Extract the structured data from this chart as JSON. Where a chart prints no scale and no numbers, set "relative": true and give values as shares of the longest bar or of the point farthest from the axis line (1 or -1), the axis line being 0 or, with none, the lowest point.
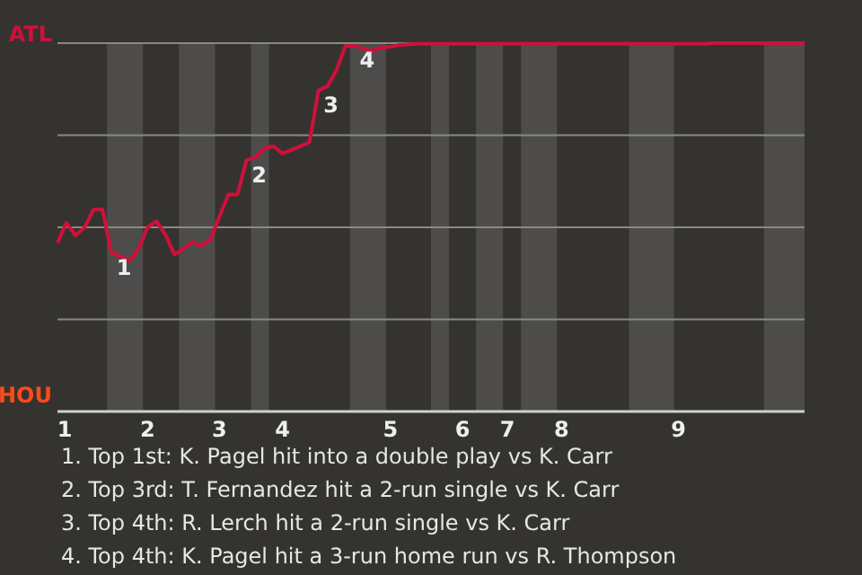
{
  "chart_data": {
    "type": "line",
    "relative": true,
    "categories": [
      "1",
      null,
      null,
      null,
      null,
      null,
      null,
      null,
      null,
      null,
      "2",
      null,
      null,
      null,
      null,
      null,
      null,
      null,
      "3",
      null,
      null,
      null,
      null,
      null,
      null,
      "4",
      null,
      null,
      null,
      null,
      null,
      null,
      null,
      null,
      null,
      null,
      null,
      "5",
      null,
      null,
      null,
      null,
      null,
      null,
      null,
      "6",
      null,
      null,
      null,
      null,
      "7",
      null,
      null,
      null,
      null,
      null,
      "8",
      null,
      null,
      null,
      null,
      null,
      null,
      null,
      null,
      null,
      null,
      null,
      null,
      "9",
      null,
      null,
      null,
      null,
      null,
      null,
      null,
      null,
      null,
      null,
      null,
      null,
      null,
      null
    ],
    "series": [
      {
        "color": "#d0103a",
        "values": [
          0.458,
          0.512,
          0.478,
          0.499,
          0.548,
          0.548,
          0.431,
          0.421,
          0.409,
          0.44,
          0.5,
          0.516,
          0.48,
          0.426,
          0.442,
          0.46,
          0.45,
          0.467,
          0.53,
          0.589,
          0.589,
          0.682,
          0.69,
          0.715,
          0.72,
          0.7,
          0.71,
          0.72,
          0.731,
          0.871,
          0.883,
          0.927,
          0.992,
          0.993,
          0.985,
          0.978,
          0.988,
          0.99,
          0.995,
          0.997,
          0.998,
          0.998,
          0.998,
          0.998,
          0.998,
          0.998,
          0.998,
          0.998,
          0.998,
          0.998,
          0.998,
          0.998,
          0.998,
          0.998,
          0.998,
          0.998,
          0.998,
          0.998,
          0.998,
          0.998,
          0.998,
          0.998,
          0.998,
          0.998,
          0.998,
          0.998,
          0.998,
          0.998,
          0.998,
          0.998,
          0.998,
          0.998,
          0.998,
          1,
          1,
          1,
          1,
          1,
          1,
          1,
          1,
          1,
          1,
          1
        ]
      }
    ],
    "grid": "y",
    "annotations": [
      "ATL",
      "HOU",
      {
        "text": "1",
        "y": 0.431
      },
      {
        "text": "2",
        "y": 0.682
      },
      {
        "text": "3",
        "y": 0.871
      },
      {
        "text": "4",
        "y": 0.993
      },
      "1. Top 1st: K. Pagel hit into a double play vs K. Carr",
      "2. Top 3rd: T. Fernandez hit a 2-run single vs K. Carr",
      "3. Top 4th: R. Lerch hit a 2-run single vs K. Carr",
      "4. Top 4th: K. Pagel hit a 3-run home run vs R. Thompson"
    ]
  }
}
